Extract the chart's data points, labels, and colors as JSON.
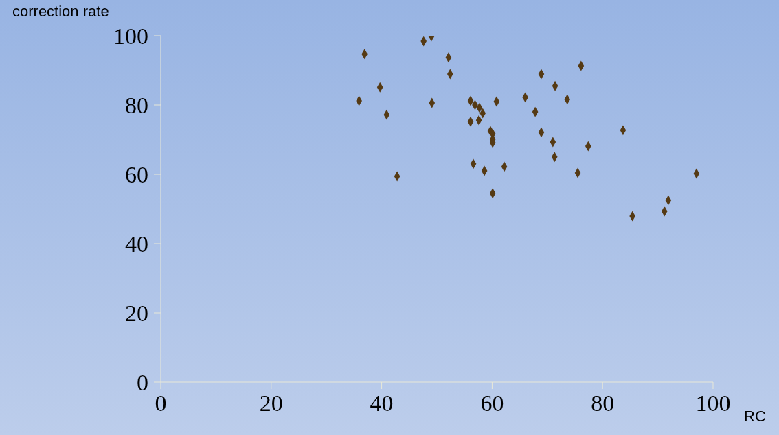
{
  "chart_data": {
    "type": "scatter",
    "xlabel": "RC",
    "ylabel": "correction rate",
    "marker": "diamond",
    "grid": false,
    "legend": false,
    "xlim": [
      0,
      100
    ],
    "xticks": [
      0,
      20,
      40,
      60,
      80,
      100
    ],
    "ylim": [
      0,
      100
    ],
    "yticks": [
      0,
      20,
      40,
      60,
      80,
      100
    ],
    "series": [
      {
        "color": "#553a14",
        "x": [
          35.9,
          36.9,
          39.7,
          40.9,
          42.8,
          47.6,
          49.0,
          49.1,
          52.1,
          52.4,
          56.1,
          56.9,
          57.7,
          58.3,
          57.6,
          56.1,
          60.8,
          56.6,
          58.6,
          62.2,
          59.7,
          60.1,
          60.1,
          60.1,
          60.1,
          66.0,
          67.8,
          68.9,
          68.9,
          71.4,
          71.0,
          71.3,
          73.6,
          76.1,
          75.5,
          77.4,
          83.7,
          85.4,
          91.2,
          91.9,
          97.0
        ],
        "values": [
          81.2,
          94.7,
          85.1,
          77.2,
          59.4,
          98.4,
          99.8,
          80.6,
          93.7,
          88.9,
          81.2,
          80.0,
          79.2,
          77.6,
          75.6,
          75.2,
          81.0,
          63.0,
          61.0,
          62.2,
          72.5,
          71.7,
          70.1,
          69.1,
          54.5,
          82.2,
          78.0,
          88.9,
          72.1,
          85.5,
          69.3,
          65.0,
          81.6,
          91.3,
          60.4,
          68.1,
          72.7,
          47.9,
          49.3,
          52.5,
          60.2
        ]
      }
    ]
  }
}
